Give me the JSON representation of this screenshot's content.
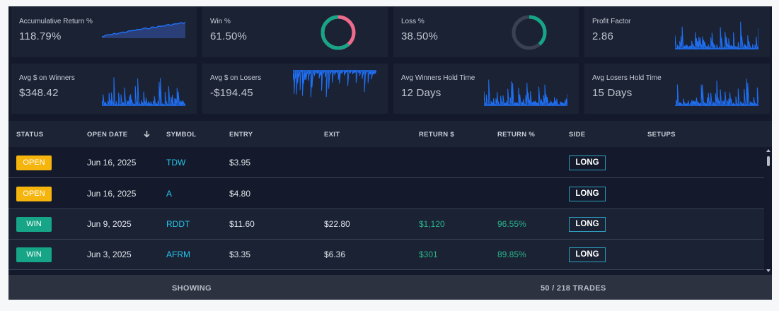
{
  "colors": {
    "accent": "#1f6ff3",
    "win": "#16a586",
    "open": "#f5b50d",
    "symbol": "#27c5ea",
    "positive": "#2bb58a",
    "loss_ring": "#ef6b8c"
  },
  "stats": [
    {
      "title": "Accumulative Return %",
      "value": "118.79%",
      "viz": "area"
    },
    {
      "title": "Win %",
      "value": "61.50%",
      "viz": "donut",
      "fraction": 0.615
    },
    {
      "title": "Loss %",
      "value": "38.50%",
      "viz": "donut",
      "fraction": 0.385
    },
    {
      "title": "Profit Factor",
      "value": "2.86",
      "viz": "spikes"
    },
    {
      "title": "Avg $ on Winners",
      "value": "$348.42",
      "viz": "spikes"
    },
    {
      "title": "Avg $ on Losers",
      "value": "-$194.45",
      "viz": "spikes-down"
    },
    {
      "title": "Avg Winners Hold Time",
      "value": "12 Days",
      "viz": "spikes"
    },
    {
      "title": "Avg Losers Hold Time",
      "value": "15 Days",
      "viz": "spikes"
    }
  ],
  "table": {
    "headers": [
      "STATUS",
      "OPEN DATE",
      "SYMBOL",
      "ENTRY",
      "EXIT",
      "RETURN $",
      "RETURN %",
      "SIDE",
      "SETUPS"
    ],
    "sort_icon": "arrow-down-icon",
    "rows": [
      {
        "status": "OPEN",
        "date": "Jun 16, 2025",
        "symbol": "TDW",
        "entry": "$3.95",
        "exit": "",
        "return_usd": "",
        "return_pct": "",
        "side": "LONG"
      },
      {
        "status": "OPEN",
        "date": "Jun 16, 2025",
        "symbol": "A",
        "entry": "$4.80",
        "exit": "",
        "return_usd": "",
        "return_pct": "",
        "side": "LONG"
      },
      {
        "status": "WIN",
        "date": "Jun 9, 2025",
        "symbol": "RDDT",
        "entry": "$11.60",
        "exit": "$22.80",
        "return_usd": "$1,120",
        "return_pct": "96.55%",
        "side": "LONG"
      },
      {
        "status": "WIN",
        "date": "Jun 3, 2025",
        "symbol": "AFRM",
        "entry": "$3.35",
        "exit": "$6.36",
        "return_usd": "$301",
        "return_pct": "89.85%",
        "side": "LONG"
      }
    ]
  },
  "footer": {
    "label": "SHOWING",
    "count": "50 / 218 TRADES"
  }
}
